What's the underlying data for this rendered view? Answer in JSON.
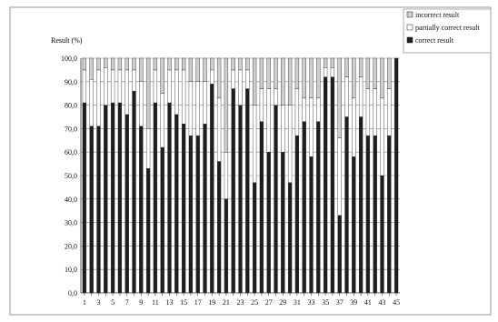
{
  "chart_data": {
    "type": "bar",
    "stacked": true,
    "ylabel": "Result (%)",
    "xlabel": "",
    "ylim": [
      0,
      100
    ],
    "yticks": [
      "0,0",
      "10,0",
      "20,0",
      "30,0",
      "40,0",
      "50,0",
      "60,0",
      "70,0",
      "80,0",
      "90,0",
      "100,0"
    ],
    "xtick_labels": [
      "1",
      "3",
      "5",
      "7",
      "9",
      "11",
      "13",
      "15",
      "17",
      "19",
      "21",
      "23",
      "25",
      "27",
      "29",
      "31",
      "33",
      "35",
      "37",
      "39",
      "41",
      "43",
      "45"
    ],
    "categories": [
      "1",
      "2",
      "3",
      "4",
      "5",
      "6",
      "7",
      "8",
      "9",
      "10",
      "11",
      "12",
      "13",
      "14",
      "15",
      "16",
      "17",
      "18",
      "19",
      "20",
      "21",
      "22",
      "23",
      "24",
      "25",
      "26",
      "27",
      "28",
      "29",
      "30",
      "31",
      "32",
      "33",
      "34",
      "35",
      "36",
      "37",
      "38",
      "39",
      "40",
      "41",
      "42",
      "43",
      "44",
      "45"
    ],
    "legend_position": "top-right",
    "series": [
      {
        "name": "correct result",
        "color": "#1e1e1e",
        "values": [
          81,
          71,
          71,
          80,
          81,
          81,
          76,
          86,
          71,
          53,
          81,
          62,
          81,
          76,
          72,
          67,
          67,
          72,
          89,
          56,
          40,
          87,
          80,
          87,
          47,
          73,
          60,
          80,
          60,
          47,
          67,
          73,
          58,
          73,
          92,
          92,
          33,
          75,
          58,
          75,
          67,
          67,
          50,
          67,
          100
        ]
      },
      {
        "name": "partially correct result",
        "color": "#ffffff",
        "values": [
          14,
          20,
          24,
          16,
          14,
          14,
          19,
          9,
          19,
          17,
          14,
          23,
          14,
          19,
          23,
          23,
          23,
          18,
          6,
          27,
          20,
          8,
          15,
          8,
          33,
          14,
          27,
          7,
          20,
          33,
          20,
          10,
          25,
          10,
          4,
          4,
          33,
          17,
          25,
          17,
          20,
          20,
          33,
          20,
          0
        ]
      },
      {
        "name": "incorrect result",
        "color": "#cfcfcf",
        "values": [
          5,
          9,
          5,
          4,
          5,
          5,
          5,
          5,
          10,
          30,
          5,
          15,
          5,
          5,
          5,
          10,
          10,
          10,
          5,
          17,
          40,
          5,
          5,
          5,
          20,
          13,
          13,
          13,
          20,
          20,
          13,
          17,
          17,
          17,
          4,
          4,
          34,
          8,
          17,
          8,
          13,
          13,
          17,
          13,
          0
        ]
      }
    ]
  }
}
